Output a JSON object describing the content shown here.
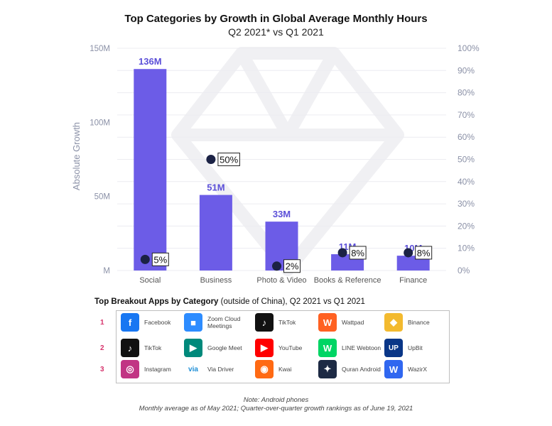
{
  "chart_data": {
    "type": "bar",
    "title": "Top Categories by Growth in Global Average Monthly Hours",
    "subtitle": "Q2 2021* vs Q1 2021",
    "ylabel": "Absolute Growth",
    "ylim": [
      0,
      150
    ],
    "y_ticks": [
      "M",
      "50M",
      "100M",
      "150M"
    ],
    "y2lim": [
      0,
      100
    ],
    "y2_ticks": [
      "0%",
      "10%",
      "20%",
      "30%",
      "40%",
      "50%",
      "60%",
      "70%",
      "80%",
      "90%",
      "100%"
    ],
    "categories": [
      "Social",
      "Business",
      "Photo & Video",
      "Books & Reference",
      "Finance"
    ],
    "series": [
      {
        "values": [
          136,
          51,
          33,
          11,
          10
        ],
        "labels": [
          "136M",
          "51M",
          "33M",
          "11M",
          "10M"
        ],
        "axis": "left",
        "color": "#6c5ce7",
        "label_color": "#5b4fd8"
      },
      {
        "values": [
          5,
          50,
          2,
          8,
          8
        ],
        "labels": [
          "5%",
          "50%",
          "2%",
          "8%",
          "8%"
        ],
        "axis": "right",
        "color": "#1b2245"
      }
    ]
  },
  "breakout": {
    "title_bold": "Top Breakout Apps by Category",
    "title_rest": " (outside of China), Q2 2021 vs Q1 2021",
    "ranks": [
      "1",
      "2",
      "3"
    ],
    "columns": [
      [
        {
          "name": "Facebook",
          "icon": "facebook-icon",
          "color": "#1877f2",
          "glyph": "f"
        },
        {
          "name": "TikTok",
          "icon": "tiktok-icon",
          "color": "#111111",
          "glyph": "♪"
        },
        {
          "name": "Instagram",
          "icon": "instagram-icon",
          "color": "#c13584",
          "glyph": "◎"
        }
      ],
      [
        {
          "name": "Zoom Cloud Meetings",
          "icon": "zoom-icon",
          "color": "#2d8cff",
          "glyph": "■"
        },
        {
          "name": "Google Meet",
          "icon": "google-meet-icon",
          "color": "#00897b",
          "glyph": "▶"
        },
        {
          "name": "Via Driver",
          "icon": "via-driver-icon",
          "color": "#ffffff",
          "glyph": "via"
        }
      ],
      [
        {
          "name": "TikTok",
          "icon": "tiktok-icon",
          "color": "#111111",
          "glyph": "♪"
        },
        {
          "name": "YouTube",
          "icon": "youtube-icon",
          "color": "#ff0000",
          "glyph": "▶"
        },
        {
          "name": "Kwai",
          "icon": "kwai-icon",
          "color": "#ff6a13",
          "glyph": "◉"
        }
      ],
      [
        {
          "name": "Wattpad",
          "icon": "wattpad-icon",
          "color": "#ff6122",
          "glyph": "W"
        },
        {
          "name": "LINE Webtoon",
          "icon": "line-webtoon-icon",
          "color": "#00d564",
          "glyph": "W"
        },
        {
          "name": "Quran Android",
          "icon": "quran-android-icon",
          "color": "#1d2a44",
          "glyph": "✦"
        }
      ],
      [
        {
          "name": "Binance",
          "icon": "binance-icon",
          "color": "#f3ba2f",
          "glyph": "◆"
        },
        {
          "name": "UpBit",
          "icon": "upbit-icon",
          "color": "#093687",
          "glyph": "UP"
        },
        {
          "name": "WazirX",
          "icon": "wazirx-icon",
          "color": "#3067f0",
          "glyph": "W"
        }
      ]
    ]
  },
  "notes": [
    "Note: Android phones",
    "Monthly average as of May 2021; Quarter-over-quarter growth rankings as of June 19, 2021"
  ]
}
